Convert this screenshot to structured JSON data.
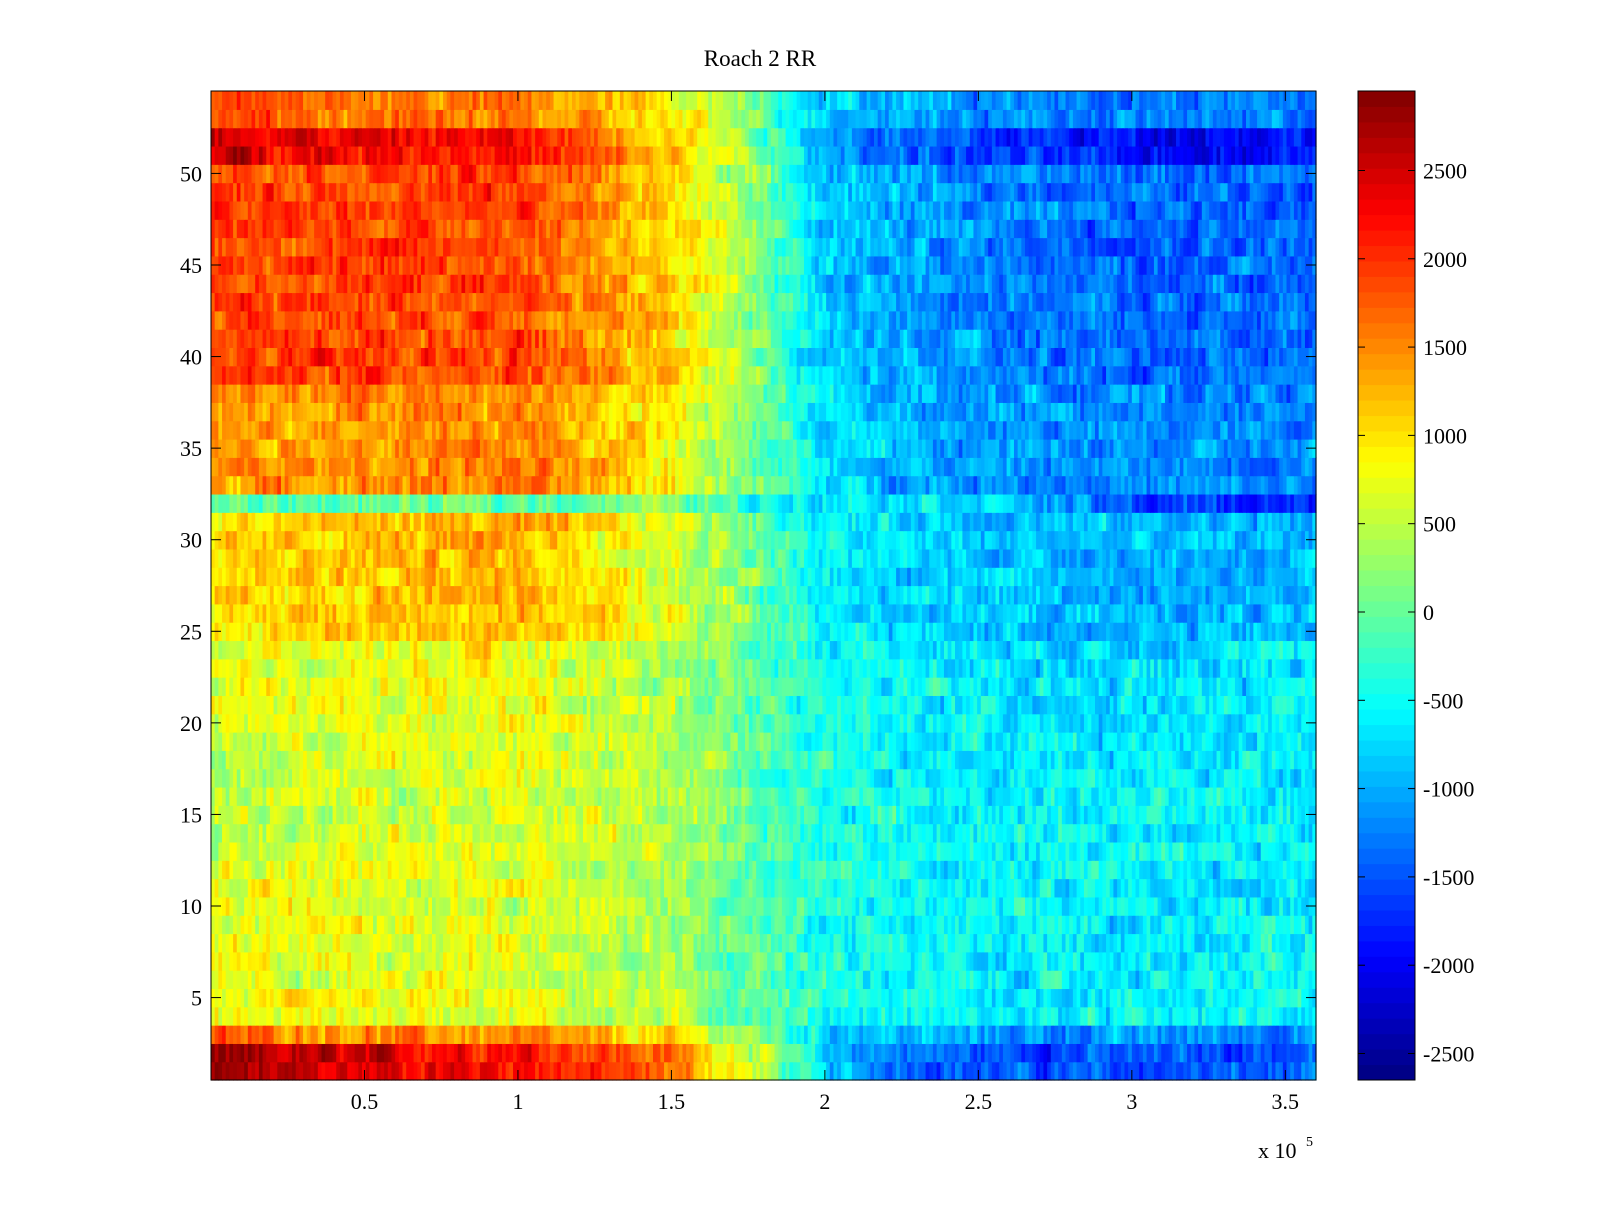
{
  "chart_data": {
    "type": "heatmap",
    "title": "Roach 2 RR",
    "xlabel": "",
    "ylabel": "",
    "x_exponent_label": {
      "base": "x 10",
      "exp": "5"
    },
    "xlim": [
      0,
      360000
    ],
    "ylim": [
      0.5,
      54.5
    ],
    "rows": 54,
    "x_ticks": [
      {
        "value": 50000,
        "label": "0.5"
      },
      {
        "value": 100000,
        "label": "1"
      },
      {
        "value": 150000,
        "label": "1.5"
      },
      {
        "value": 200000,
        "label": "2"
      },
      {
        "value": 250000,
        "label": "2.5"
      },
      {
        "value": 300000,
        "label": "3"
      },
      {
        "value": 350000,
        "label": "3.5"
      }
    ],
    "y_ticks": [
      {
        "value": 5,
        "label": "5"
      },
      {
        "value": 10,
        "label": "10"
      },
      {
        "value": 15,
        "label": "15"
      },
      {
        "value": 20,
        "label": "20"
      },
      {
        "value": 25,
        "label": "25"
      },
      {
        "value": 30,
        "label": "30"
      },
      {
        "value": 35,
        "label": "35"
      },
      {
        "value": 40,
        "label": "40"
      },
      {
        "value": 45,
        "label": "45"
      },
      {
        "value": 50,
        "label": "50"
      }
    ],
    "colorbar": {
      "colormap": "jet",
      "range": [
        -2650,
        2950
      ],
      "ticks": [
        {
          "value": 2500,
          "label": "2500"
        },
        {
          "value": 2000,
          "label": "2000"
        },
        {
          "value": 1500,
          "label": "1500"
        },
        {
          "value": 1000,
          "label": "1000"
        },
        {
          "value": 500,
          "label": "500"
        },
        {
          "value": 0,
          "label": "0"
        },
        {
          "value": -500,
          "label": "-500"
        },
        {
          "value": -1000,
          "label": "-1000"
        },
        {
          "value": -1500,
          "label": "-1500"
        },
        {
          "value": -2000,
          "label": "-2000"
        },
        {
          "value": -2500,
          "label": "-2500"
        }
      ]
    },
    "row_profiles": {
      "x_anchors": [
        0,
        50000,
        100000,
        150000,
        175000,
        200000,
        250000,
        300000,
        360000
      ],
      "groups": [
        {
          "rows": [
            1,
            2
          ],
          "values": [
            2700,
            2400,
            2300,
            1600,
            700,
            -900,
            -1500,
            -1550,
            -1450
          ]
        },
        {
          "rows": [
            3
          ],
          "values": [
            1700,
            1500,
            1400,
            900,
            300,
            -700,
            -1100,
            -1150,
            -1100
          ]
        },
        {
          "rows": [
            4,
            5,
            6,
            7,
            8,
            9,
            10,
            11,
            12
          ],
          "values": [
            700,
            750,
            700,
            400,
            0,
            -450,
            -600,
            -600,
            -550
          ]
        },
        {
          "rows": [
            13,
            14,
            15,
            16,
            17,
            18,
            19
          ],
          "values": [
            500,
            650,
            700,
            400,
            0,
            -400,
            -550,
            -600,
            -600
          ]
        },
        {
          "rows": [
            20,
            21,
            22,
            23,
            24
          ],
          "values": [
            650,
            750,
            750,
            400,
            0,
            -450,
            -650,
            -700,
            -650
          ]
        },
        {
          "rows": [
            25,
            26,
            27,
            28,
            29,
            30,
            31
          ],
          "values": [
            950,
            1200,
            1250,
            700,
            150,
            -600,
            -850,
            -950,
            -950
          ]
        },
        {
          "rows": [
            32
          ],
          "values": [
            -100,
            -50,
            0,
            200,
            -400,
            -500,
            -600,
            -1600,
            -1800
          ]
        },
        {
          "rows": [
            33,
            34,
            35,
            36,
            37,
            38
          ],
          "values": [
            1400,
            1500,
            1550,
            900,
            200,
            -700,
            -1100,
            -1200,
            -1200
          ]
        },
        {
          "rows": [
            39,
            40,
            41,
            42,
            43,
            44,
            45,
            46,
            47,
            48,
            49,
            50
          ],
          "values": [
            1900,
            1900,
            1900,
            1050,
            250,
            -800,
            -1250,
            -1350,
            -1350
          ]
        },
        {
          "rows": [
            51,
            52
          ],
          "values": [
            2600,
            2300,
            2200,
            1200,
            300,
            -1000,
            -1650,
            -1900,
            -1850
          ]
        },
        {
          "rows": [
            53,
            54
          ],
          "values": [
            1800,
            1600,
            1550,
            900,
            250,
            -750,
            -1100,
            -1250,
            -1200
          ]
        }
      ]
    }
  }
}
